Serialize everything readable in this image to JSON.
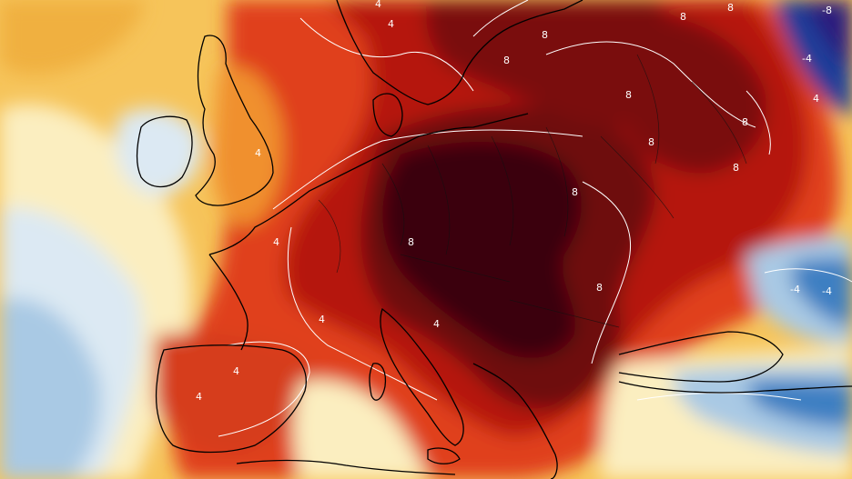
{
  "map": {
    "type": "temperature-anomaly-map",
    "region": "Europe",
    "colors": {
      "extreme": "#3a0507",
      "very_high": "#7a0b0b",
      "high": "#b5170d",
      "warm": "#e0401a",
      "mild_warm": "#f0902e",
      "slight_warm": "#f6c45a",
      "neutral": "#fbeec0",
      "slight_cool": "#dce9f3",
      "cool": "#a9c9e4",
      "cold": "#3d7fc2",
      "very_cold": "#1b3c9a",
      "extreme_cold": "#2a1c7e",
      "contour": "#ffffff",
      "coastline": "#000000"
    },
    "contour_labels": [
      {
        "id": "ct-1",
        "text": "4"
      },
      {
        "id": "ct-2",
        "text": "4"
      },
      {
        "id": "ct-3",
        "text": "8"
      },
      {
        "id": "ct-4",
        "text": "8"
      },
      {
        "id": "ct-5",
        "text": "8"
      },
      {
        "id": "ct-6",
        "text": "8"
      },
      {
        "id": "ct-7",
        "text": "8"
      },
      {
        "id": "ct-8",
        "text": "8"
      },
      {
        "id": "ct-9",
        "text": "8"
      },
      {
        "id": "ct-10",
        "text": "8"
      },
      {
        "id": "ct-11",
        "text": "4"
      },
      {
        "id": "ct-12",
        "text": "4"
      },
      {
        "id": "ct-13",
        "text": "4"
      },
      {
        "id": "ct-14",
        "text": "4"
      },
      {
        "id": "ct-15",
        "text": "8"
      },
      {
        "id": "ct-16",
        "text": "4"
      },
      {
        "id": "ct-17",
        "text": "-4"
      },
      {
        "id": "ct-18",
        "text": "-8"
      },
      {
        "id": "ct-19",
        "text": "-4"
      },
      {
        "id": "ct-20",
        "text": "-4"
      },
      {
        "id": "ct-21",
        "text": "4"
      },
      {
        "id": "ct-22",
        "text": "4"
      },
      {
        "id": "ct-23",
        "text": "8"
      },
      {
        "id": "ct-24",
        "text": "8"
      }
    ]
  }
}
